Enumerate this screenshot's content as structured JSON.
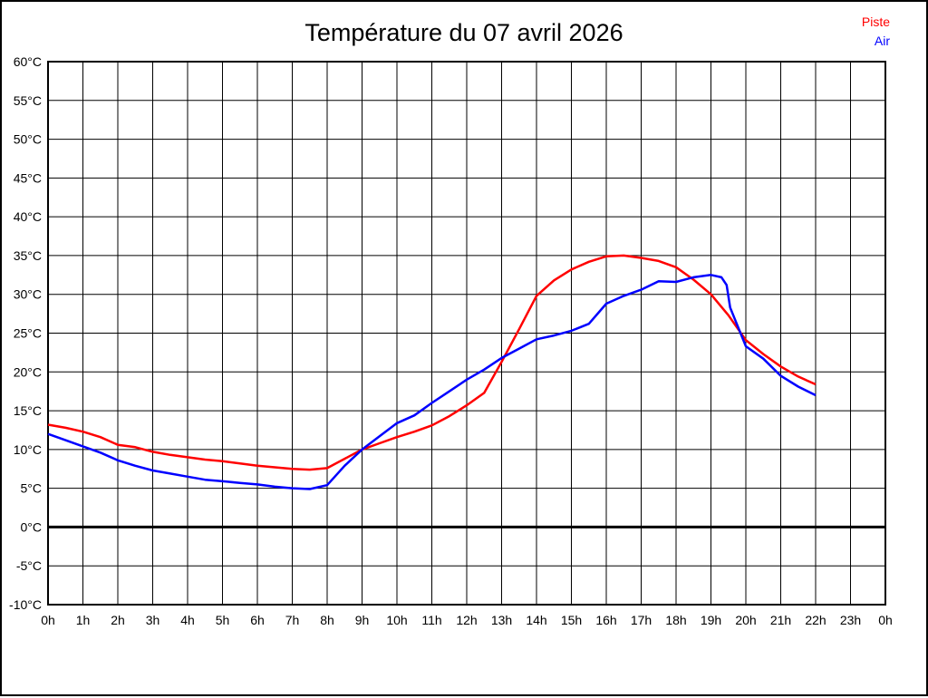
{
  "title": "Température du 07 avril 2026",
  "legend": {
    "piste": "Piste",
    "air": "Air"
  },
  "colors": {
    "piste": "#ff0000",
    "air": "#0000ff",
    "grid": "#000000",
    "background": "#ffffff"
  },
  "chart_data": {
    "type": "line",
    "title": "Température du 07 avril 2026",
    "xlabel": "",
    "ylabel": "",
    "xlim": [
      0,
      24
    ],
    "ylim": [
      -10,
      60
    ],
    "y_step": 5,
    "x_step": 1,
    "grid": true,
    "zero_line_bold": true,
    "legend_position": "top-right",
    "x_tick_labels": [
      "0h",
      "1h",
      "2h",
      "3h",
      "4h",
      "5h",
      "6h",
      "7h",
      "8h",
      "9h",
      "10h",
      "11h",
      "12h",
      "13h",
      "14h",
      "15h",
      "16h",
      "17h",
      "18h",
      "19h",
      "20h",
      "21h",
      "22h",
      "23h",
      "0h"
    ],
    "y_tick_labels": [
      "60°C",
      "55°C",
      "50°C",
      "45°C",
      "40°C",
      "35°C",
      "30°C",
      "25°C",
      "20°C",
      "15°C",
      "10°C",
      "5°C",
      "0°C",
      "-5°C",
      "-10°C"
    ],
    "series": [
      {
        "name": "Piste",
        "color": "#ff0000",
        "points": [
          [
            0,
            13.2
          ],
          [
            0.5,
            12.8
          ],
          [
            1,
            12.3
          ],
          [
            1.5,
            11.6
          ],
          [
            2,
            10.6
          ],
          [
            2.5,
            10.3
          ],
          [
            3,
            9.7
          ],
          [
            3.5,
            9.3
          ],
          [
            4,
            9.0
          ],
          [
            4.5,
            8.7
          ],
          [
            5,
            8.5
          ],
          [
            5.5,
            8.2
          ],
          [
            6,
            7.9
          ],
          [
            6.5,
            7.7
          ],
          [
            7,
            7.5
          ],
          [
            7.5,
            7.4
          ],
          [
            8,
            7.6
          ],
          [
            8.5,
            8.8
          ],
          [
            9,
            10.0
          ],
          [
            9.5,
            10.8
          ],
          [
            10,
            11.6
          ],
          [
            10.5,
            12.3
          ],
          [
            11,
            13.1
          ],
          [
            11.5,
            14.3
          ],
          [
            12,
            15.7
          ],
          [
            12.5,
            17.3
          ],
          [
            13,
            21.3
          ],
          [
            13.5,
            25.5
          ],
          [
            14,
            29.8
          ],
          [
            14.5,
            31.8
          ],
          [
            15,
            33.2
          ],
          [
            15.5,
            34.2
          ],
          [
            16,
            34.9
          ],
          [
            16.5,
            35.0
          ],
          [
            17,
            34.7
          ],
          [
            17.5,
            34.3
          ],
          [
            18,
            33.5
          ],
          [
            18.5,
            31.9
          ],
          [
            19,
            30.0
          ],
          [
            19.5,
            27.3
          ],
          [
            20,
            24.1
          ],
          [
            20.5,
            22.3
          ],
          [
            21,
            20.7
          ],
          [
            21.5,
            19.4
          ],
          [
            22,
            18.4
          ]
        ]
      },
      {
        "name": "Air",
        "color": "#0000ff",
        "points": [
          [
            0,
            12.0
          ],
          [
            0.5,
            11.2
          ],
          [
            1,
            10.4
          ],
          [
            1.5,
            9.6
          ],
          [
            2,
            8.6
          ],
          [
            2.5,
            7.9
          ],
          [
            3,
            7.3
          ],
          [
            3.5,
            6.9
          ],
          [
            4,
            6.5
          ],
          [
            4.5,
            6.1
          ],
          [
            5,
            5.9
          ],
          [
            5.5,
            5.7
          ],
          [
            6,
            5.5
          ],
          [
            6.5,
            5.2
          ],
          [
            7,
            5.0
          ],
          [
            7.5,
            4.9
          ],
          [
            8,
            5.4
          ],
          [
            8.5,
            7.9
          ],
          [
            9,
            10.0
          ],
          [
            9.5,
            11.7
          ],
          [
            10,
            13.4
          ],
          [
            10.5,
            14.4
          ],
          [
            11,
            16.0
          ],
          [
            11.5,
            17.5
          ],
          [
            12,
            19.0
          ],
          [
            12.5,
            20.3
          ],
          [
            13,
            21.8
          ],
          [
            13.5,
            23.0
          ],
          [
            14,
            24.2
          ],
          [
            14.5,
            24.7
          ],
          [
            15,
            25.3
          ],
          [
            15.5,
            26.2
          ],
          [
            16,
            28.8
          ],
          [
            16.5,
            29.8
          ],
          [
            17,
            30.6
          ],
          [
            17.5,
            31.7
          ],
          [
            18,
            31.6
          ],
          [
            18.5,
            32.2
          ],
          [
            19,
            32.5
          ],
          [
            19.3,
            32.2
          ],
          [
            19.45,
            31.2
          ],
          [
            19.55,
            28.3
          ],
          [
            20,
            23.3
          ],
          [
            20.5,
            21.7
          ],
          [
            21,
            19.5
          ],
          [
            21.5,
            18.1
          ],
          [
            22,
            17.0
          ]
        ]
      }
    ]
  }
}
